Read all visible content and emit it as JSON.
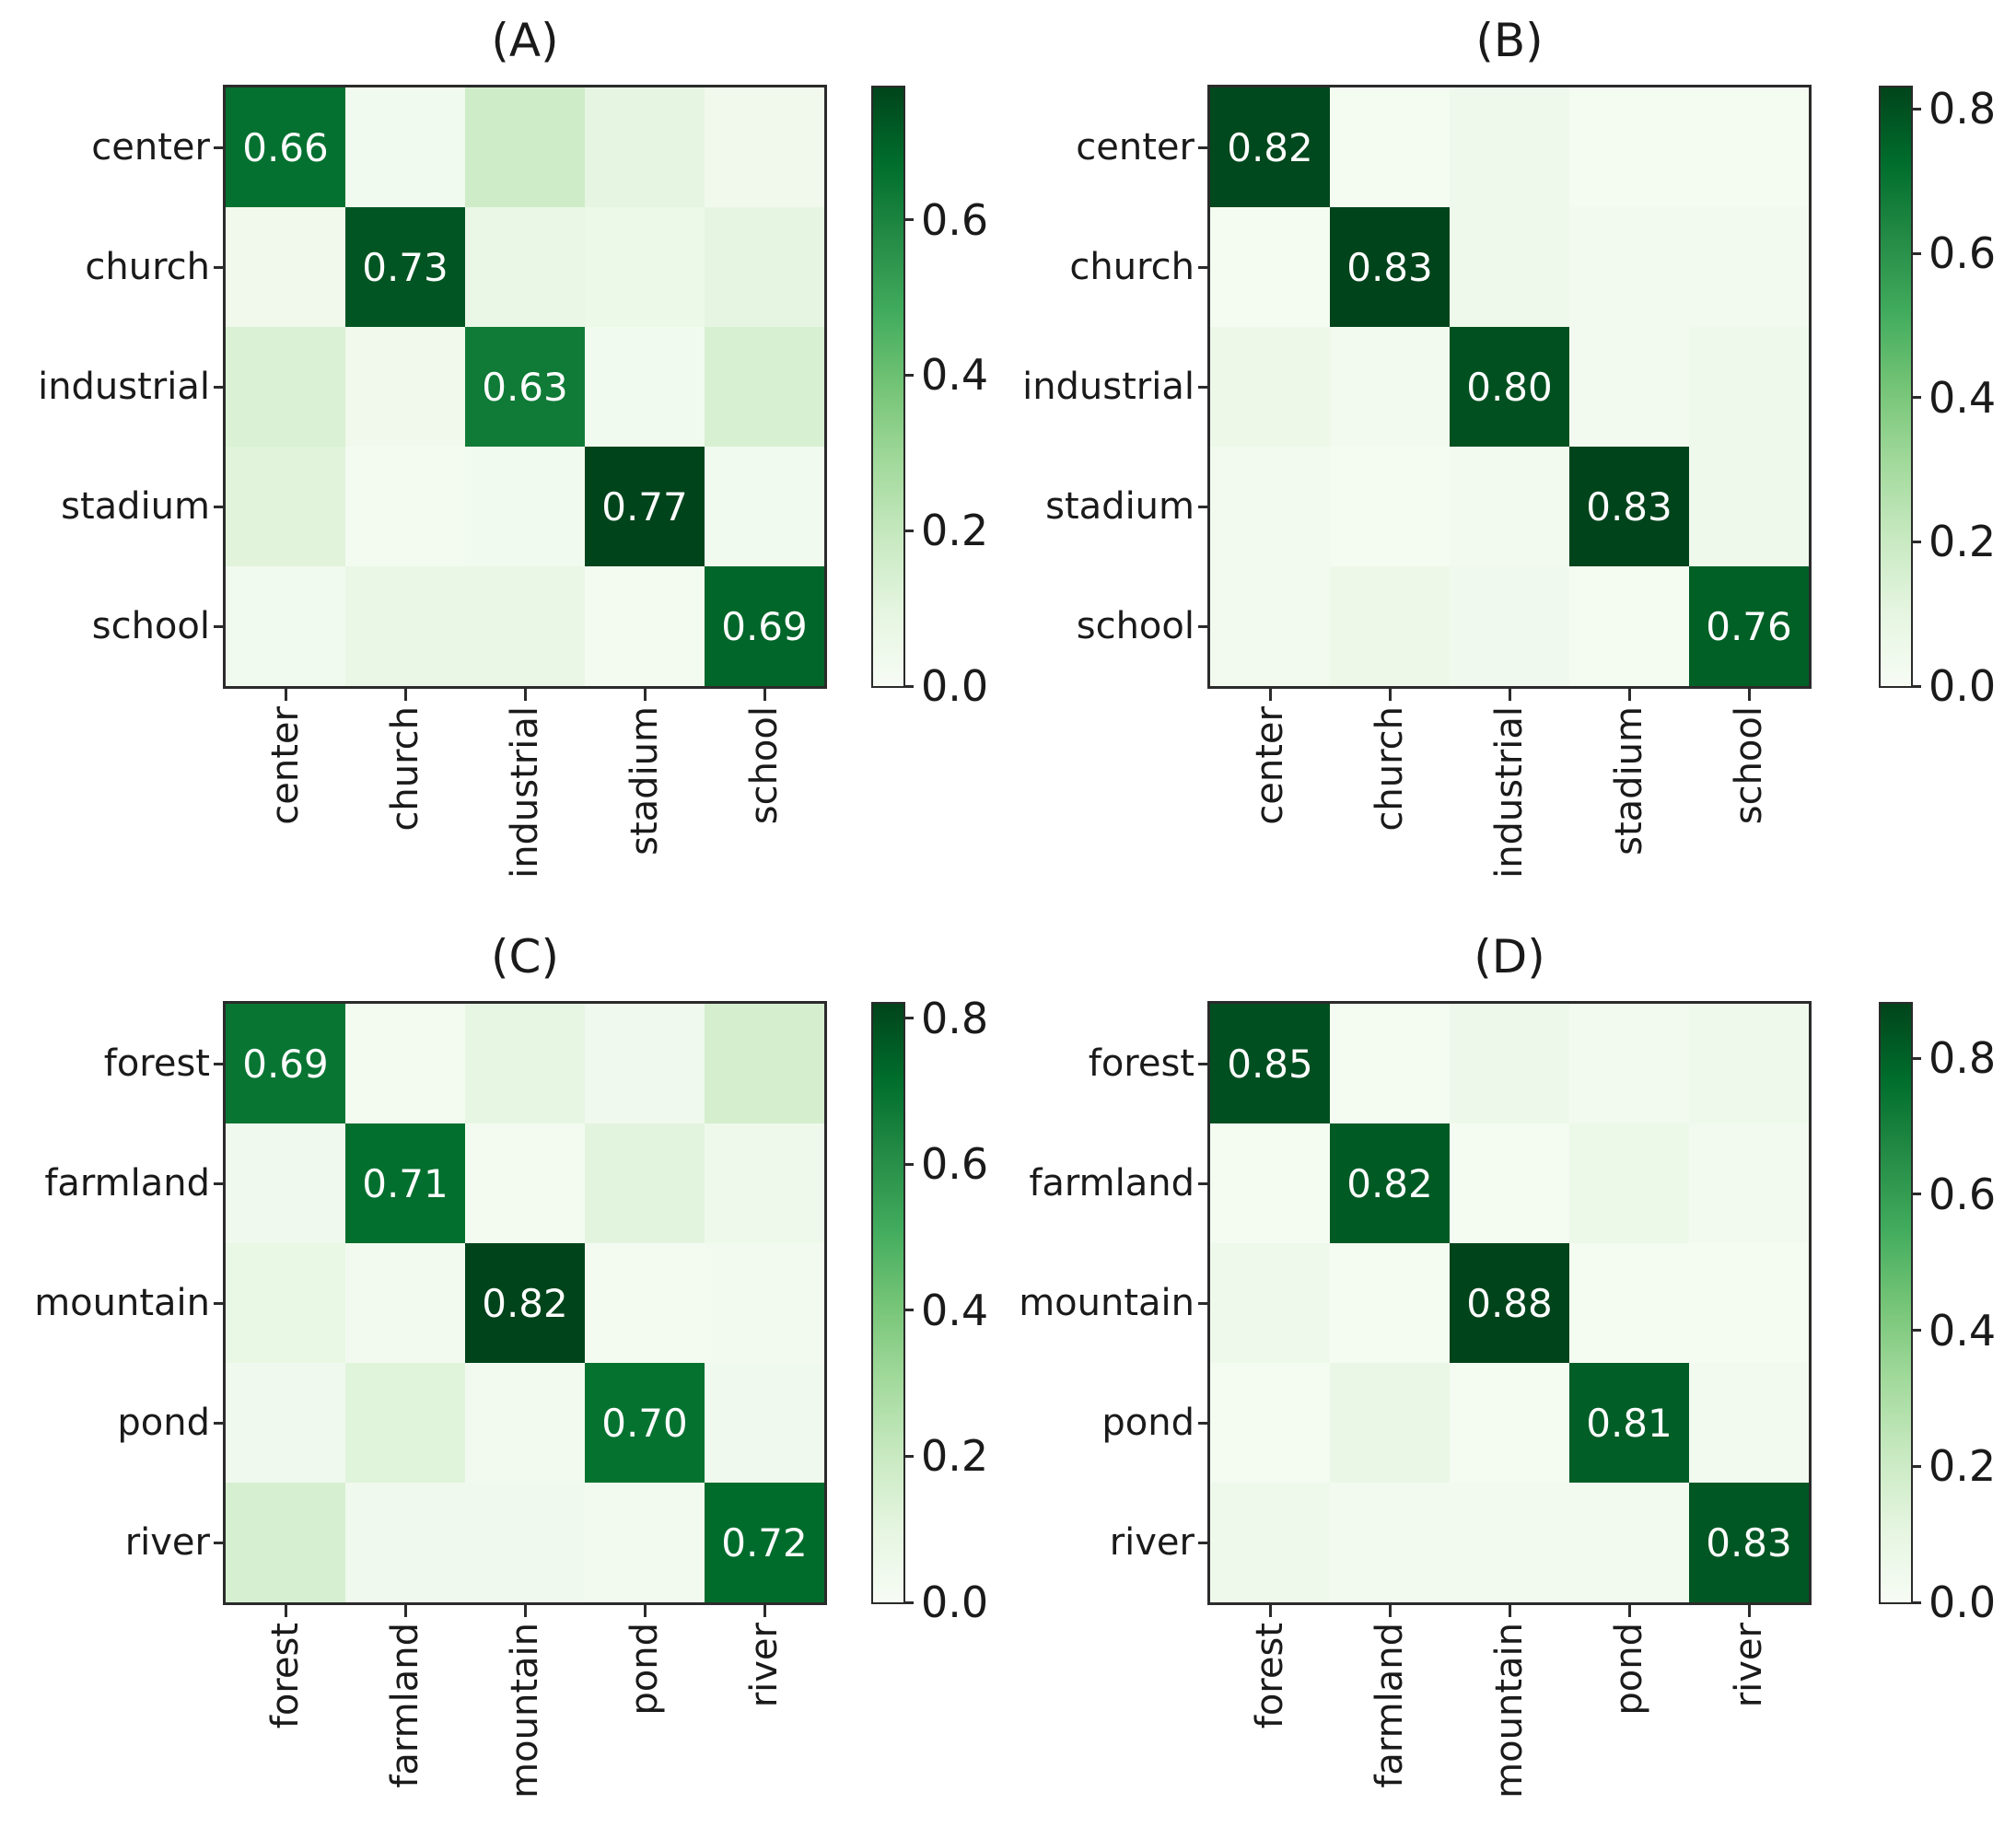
{
  "figure": {
    "background": "#ffffff",
    "colormap": "Greens",
    "colormap_anchors": [
      "#f7fcf5",
      "#e5f5e0",
      "#c7e9c0",
      "#a1d99b",
      "#74c476",
      "#41ab5d",
      "#238b45",
      "#006d2c",
      "#00441b"
    ],
    "cell_text_color": "#ffffff",
    "axis_color": "#2b2b2b",
    "label_color": "#1a1a1a"
  },
  "chart_data": [
    {
      "type": "heatmap",
      "title": "(A)",
      "x_categories": [
        "center",
        "church",
        "industrial",
        "stadium",
        "school"
      ],
      "y_categories": [
        "center",
        "church",
        "industrial",
        "stadium",
        "school"
      ],
      "values": [
        [
          0.66,
          0.03,
          0.17,
          0.09,
          0.04
        ],
        [
          0.04,
          0.73,
          0.07,
          0.06,
          0.09
        ],
        [
          0.13,
          0.04,
          0.63,
          0.03,
          0.14
        ],
        [
          0.11,
          0.02,
          0.03,
          0.77,
          0.03
        ],
        [
          0.03,
          0.07,
          0.07,
          0.02,
          0.69
        ]
      ],
      "diagonal_labels": [
        "0.66",
        "0.73",
        "0.63",
        "0.77",
        "0.69"
      ],
      "vmin": 0.0,
      "vmax": 0.77,
      "colorbar_ticks": [
        0.0,
        0.2,
        0.4,
        0.6
      ],
      "colorbar_tick_labels": [
        "0.0",
        "0.2",
        "0.4",
        "0.6"
      ]
    },
    {
      "type": "heatmap",
      "title": "(B)",
      "x_categories": [
        "center",
        "church",
        "industrial",
        "stadium",
        "school"
      ],
      "y_categories": [
        "center",
        "church",
        "industrial",
        "stadium",
        "school"
      ],
      "values": [
        [
          0.82,
          0.02,
          0.05,
          0.02,
          0.02
        ],
        [
          0.02,
          0.83,
          0.05,
          0.03,
          0.03
        ],
        [
          0.06,
          0.03,
          0.8,
          0.03,
          0.05
        ],
        [
          0.03,
          0.02,
          0.03,
          0.83,
          0.05
        ],
        [
          0.03,
          0.06,
          0.04,
          0.02,
          0.76
        ]
      ],
      "diagonal_labels": [
        "0.82",
        "0.83",
        "0.80",
        "0.83",
        "0.76"
      ],
      "vmin": 0.0,
      "vmax": 0.83,
      "colorbar_ticks": [
        0.0,
        0.2,
        0.4,
        0.6,
        0.8
      ],
      "colorbar_tick_labels": [
        "0.0",
        "0.2",
        "0.4",
        "0.6",
        "0.8"
      ]
    },
    {
      "type": "heatmap",
      "title": "(C)",
      "x_categories": [
        "forest",
        "farmland",
        "mountain",
        "pond",
        "river"
      ],
      "y_categories": [
        "forest",
        "farmland",
        "mountain",
        "pond",
        "river"
      ],
      "values": [
        [
          0.69,
          0.02,
          0.09,
          0.04,
          0.16
        ],
        [
          0.04,
          0.71,
          0.02,
          0.11,
          0.05
        ],
        [
          0.08,
          0.03,
          0.82,
          0.02,
          0.03
        ],
        [
          0.04,
          0.12,
          0.03,
          0.7,
          0.04
        ],
        [
          0.15,
          0.04,
          0.04,
          0.03,
          0.72
        ]
      ],
      "diagonal_labels": [
        "0.69",
        "0.71",
        "0.82",
        "0.70",
        "0.72"
      ],
      "vmin": 0.0,
      "vmax": 0.82,
      "colorbar_ticks": [
        0.0,
        0.2,
        0.4,
        0.6,
        0.8
      ],
      "colorbar_tick_labels": [
        "0.0",
        "0.2",
        "0.4",
        "0.6",
        "0.8"
      ]
    },
    {
      "type": "heatmap",
      "title": "(D)",
      "x_categories": [
        "forest",
        "farmland",
        "mountain",
        "pond",
        "river"
      ],
      "y_categories": [
        "forest",
        "farmland",
        "mountain",
        "pond",
        "river"
      ],
      "values": [
        [
          0.85,
          0.02,
          0.06,
          0.03,
          0.05
        ],
        [
          0.02,
          0.82,
          0.02,
          0.07,
          0.03
        ],
        [
          0.05,
          0.02,
          0.88,
          0.02,
          0.02
        ],
        [
          0.02,
          0.08,
          0.02,
          0.81,
          0.03
        ],
        [
          0.05,
          0.03,
          0.03,
          0.03,
          0.83
        ]
      ],
      "diagonal_labels": [
        "0.85",
        "0.82",
        "0.88",
        "0.81",
        "0.83"
      ],
      "vmin": 0.0,
      "vmax": 0.88,
      "colorbar_ticks": [
        0.0,
        0.2,
        0.4,
        0.6,
        0.8
      ],
      "colorbar_tick_labels": [
        "0.0",
        "0.2",
        "0.4",
        "0.6",
        "0.8"
      ]
    }
  ]
}
